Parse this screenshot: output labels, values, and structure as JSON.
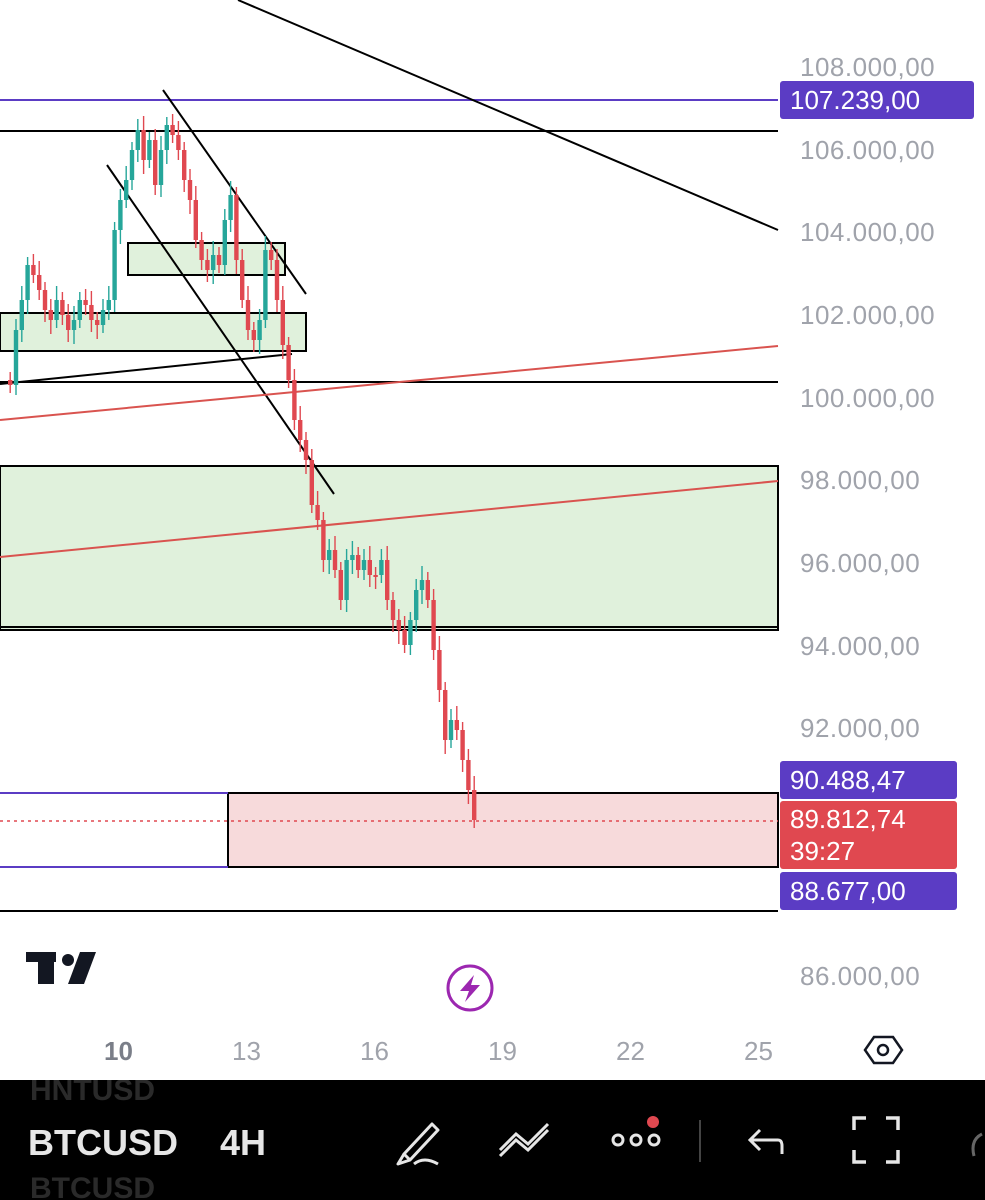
{
  "price_axis": {
    "labels": [
      "108.000,00",
      "106.000,00",
      "104.000,00",
      "102.000,00",
      "100.000,00",
      "98.000,00",
      "96.000,00",
      "94.000,00",
      "92.000,00",
      "86.000,00"
    ]
  },
  "price_tags": {
    "upper_level": "107.239,00",
    "mid_level": "90.488,47",
    "last_price": "89.812,74",
    "countdown": "39:27",
    "lower_level": "88.677,00"
  },
  "time_axis": {
    "labels": [
      "10",
      "13",
      "16",
      "19",
      "22",
      "25"
    ]
  },
  "toolbar": {
    "symbol": "BTCUSD",
    "interval": "4H",
    "ghost_symbol_top": "HNTUSD",
    "ghost_symbol_bottom": "BTCUSD"
  },
  "icons": {
    "logo": "tradingview-logo",
    "lightning": "lightning-icon",
    "settings": "settings-hexagon-icon",
    "pencil": "pencil-icon",
    "drawing_tools": "trendline-tools-icon",
    "more": "more-icon",
    "undo": "undo-icon",
    "fullscreen": "fullscreen-icon"
  },
  "colors": {
    "up_candle": "#26a69a",
    "down_candle": "#e04850",
    "zone_green": "#e0f1dc",
    "zone_red": "#f7dadb",
    "purple_tag": "#5b3cc4",
    "red_tag": "#e04850",
    "trend_red": "#d9534f"
  }
}
